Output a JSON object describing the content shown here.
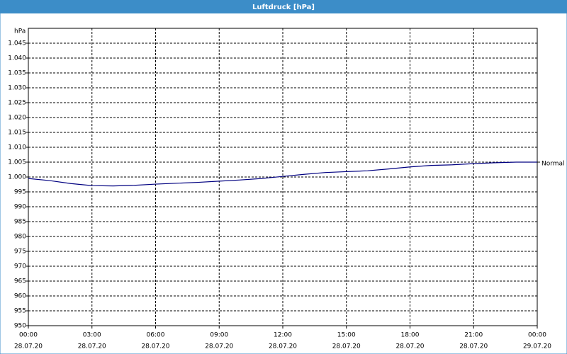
{
  "chart_data": {
    "type": "line",
    "title": "Luftdruck [hPa]",
    "y_label": "hPa",
    "x": [
      0,
      1,
      2,
      3,
      4,
      5,
      6,
      7,
      8,
      9,
      10,
      11,
      12,
      13,
      14,
      15,
      16,
      17,
      18,
      19,
      20,
      21,
      22,
      23,
      24
    ],
    "series": [
      {
        "name": "Normal",
        "color": "#000080",
        "values": [
          999.5,
          998.8,
          997.8,
          997.1,
          997.0,
          997.2,
          997.6,
          997.9,
          998.2,
          998.6,
          999.0,
          999.5,
          1000.2,
          1000.9,
          1001.5,
          1001.8,
          1002.1,
          1002.7,
          1003.4,
          1003.9,
          1004.1,
          1004.5,
          1004.8,
          1005.0,
          1005.0
        ]
      }
    ],
    "xlim": [
      0,
      24
    ],
    "xticks": [
      {
        "value": 0,
        "label": "00:00"
      },
      {
        "value": 3,
        "label": "03:00"
      },
      {
        "value": 6,
        "label": "06:00"
      },
      {
        "value": 9,
        "label": "09:00"
      },
      {
        "value": 12,
        "label": "12:00"
      },
      {
        "value": 15,
        "label": "15:00"
      },
      {
        "value": 18,
        "label": "18:00"
      },
      {
        "value": 21,
        "label": "21:00"
      },
      {
        "value": 24,
        "label": "00:00"
      }
    ],
    "xtick_dates": [
      "28.07.20",
      "28.07.20",
      "28.07.20",
      "28.07.20",
      "28.07.20",
      "28.07.20",
      "28.07.20",
      "28.07.20",
      "29.07.20"
    ],
    "ylim": [
      950,
      1050
    ],
    "yticks": [
      950,
      955,
      960,
      965,
      970,
      975,
      980,
      985,
      990,
      995,
      {
        "value": 1000,
        "label": "1.000"
      },
      {
        "value": 1005,
        "label": "1.005"
      },
      {
        "value": 1010,
        "label": "1.010"
      },
      {
        "value": 1015,
        "label": "1.015"
      },
      {
        "value": 1020,
        "label": "1.020"
      },
      {
        "value": 1025,
        "label": "1.025"
      },
      {
        "value": 1030,
        "label": "1.030"
      },
      {
        "value": 1035,
        "label": "1.035"
      },
      {
        "value": 1040,
        "label": "1.040"
      },
      {
        "value": 1045,
        "label": "1.045"
      }
    ],
    "grid": true
  }
}
